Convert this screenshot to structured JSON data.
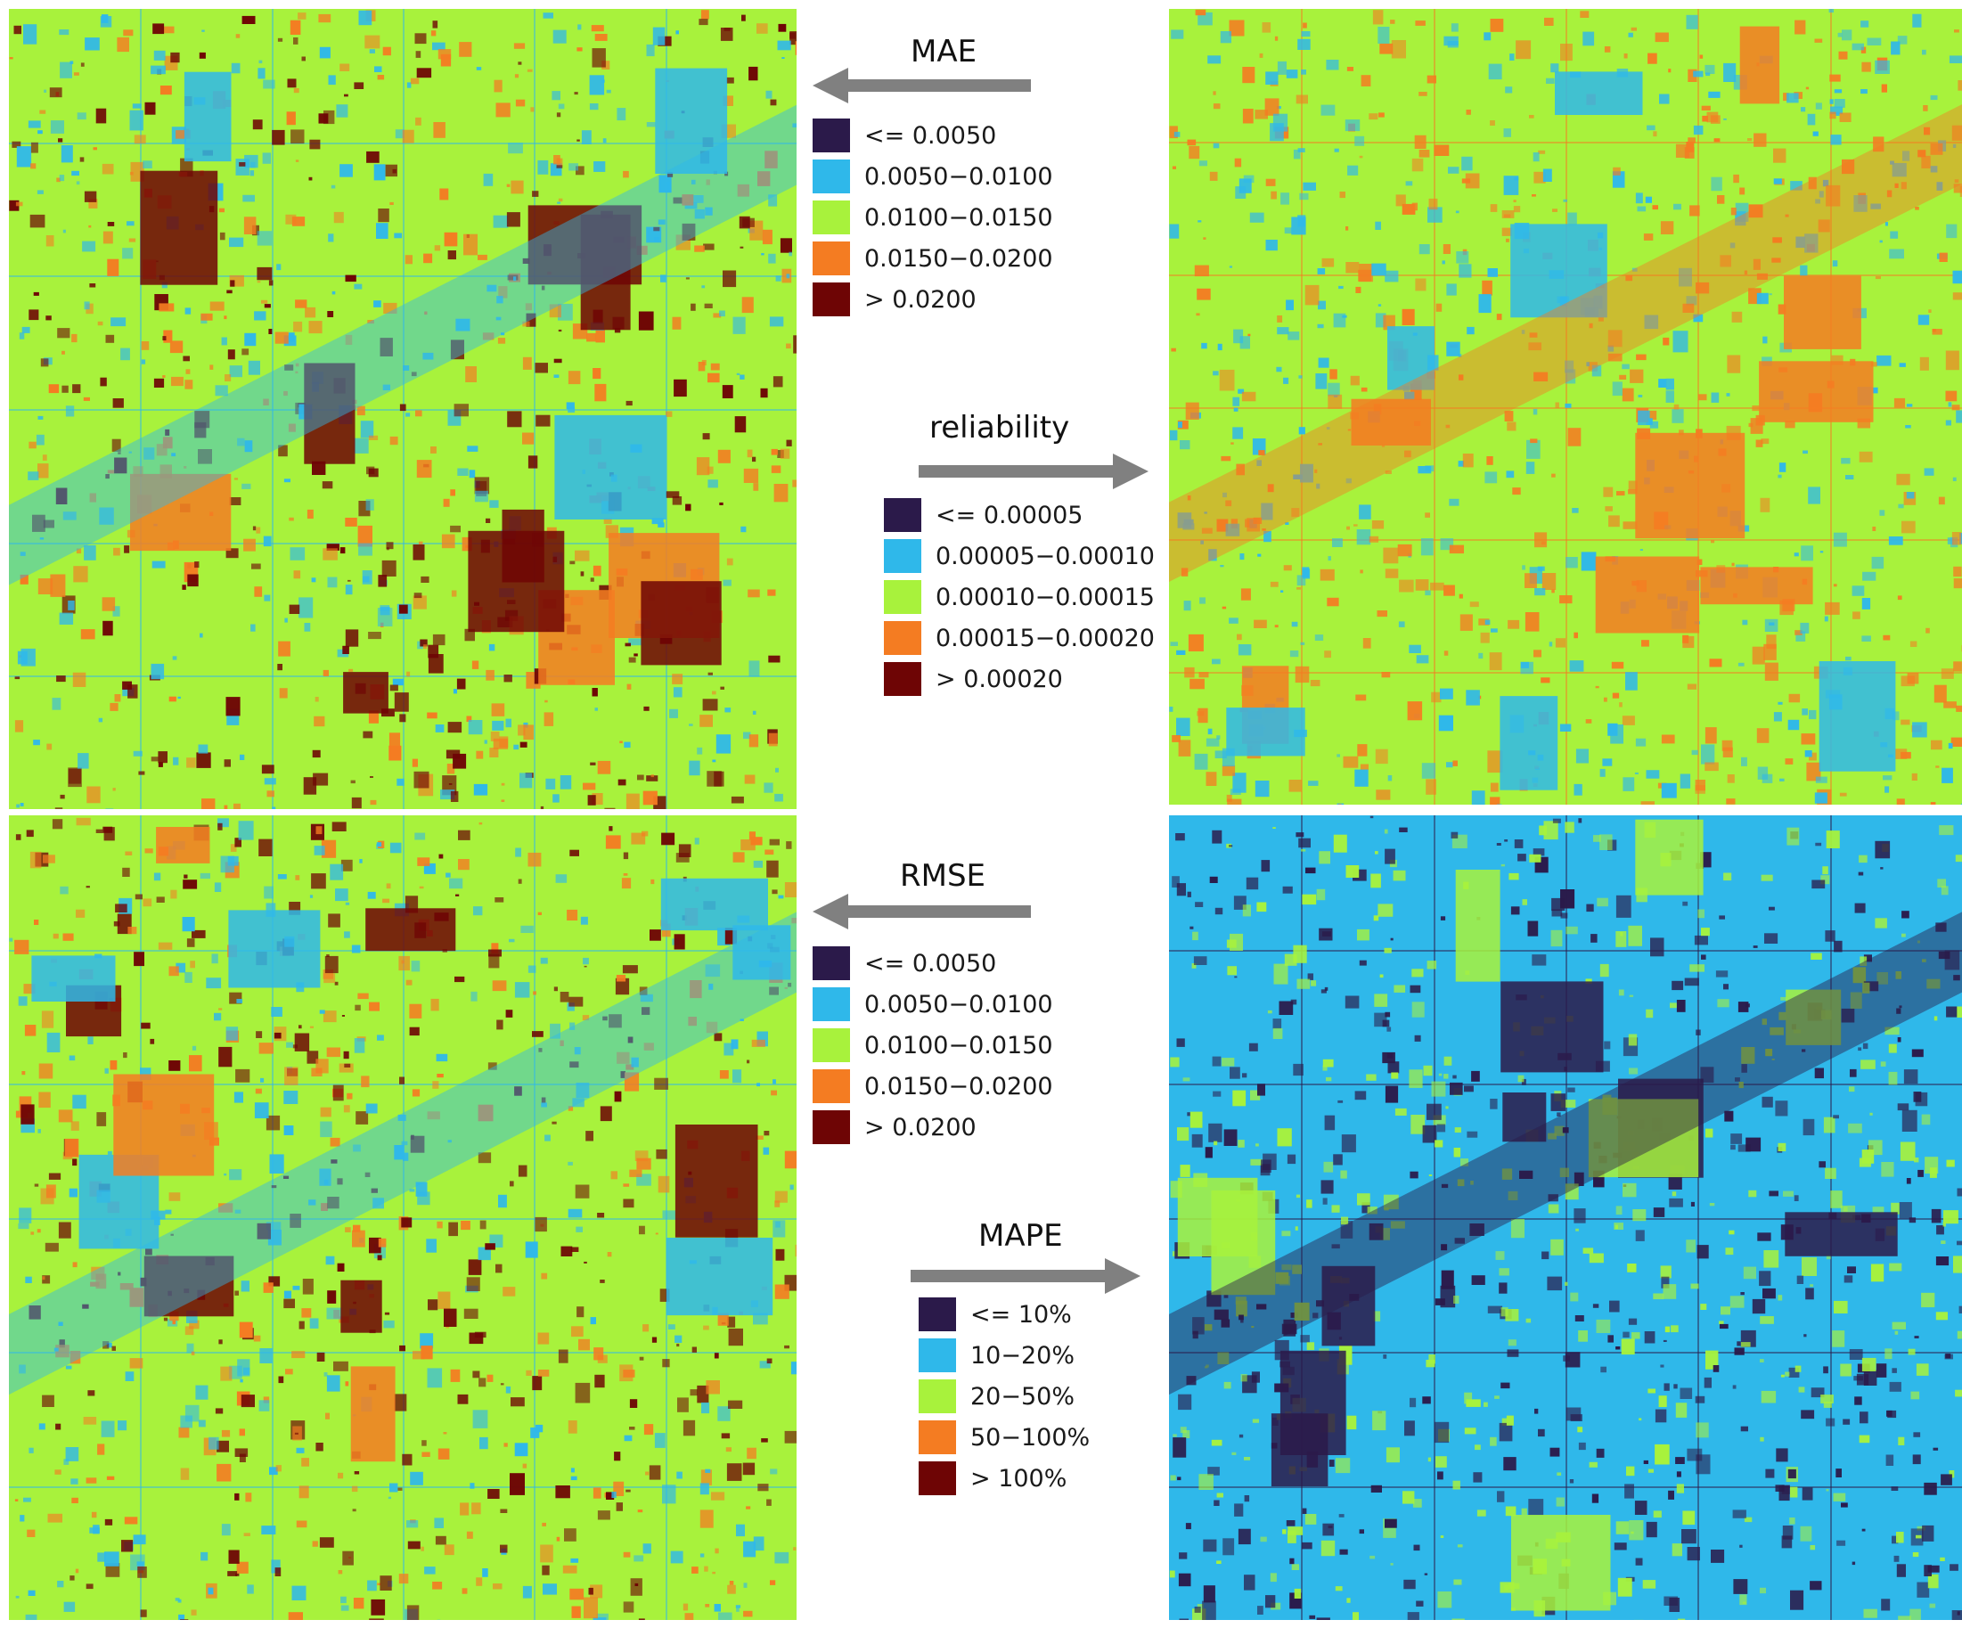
{
  "colors": {
    "c1": "#2b1a4a",
    "c2": "#2fb8ea",
    "c3": "#a8f23c",
    "c4": "#f47c22",
    "c5": "#6e0505",
    "arrow": "#808080"
  },
  "maps": [
    {
      "name": "mae",
      "base": "#a8f23c",
      "texture": [
        "#2fb8ea",
        "#f47c22",
        "#6e0505"
      ]
    },
    {
      "name": "reliability",
      "base": "#a8f23c",
      "texture": [
        "#f47c22",
        "#2fb8ea"
      ]
    },
    {
      "name": "rmse",
      "base": "#a8f23c",
      "texture": [
        "#2fb8ea",
        "#f47c22",
        "#6e0505"
      ]
    },
    {
      "name": "mape",
      "base": "#2fb8ea",
      "texture": [
        "#2b1a4a",
        "#a8f23c"
      ]
    }
  ],
  "legends": {
    "mae": {
      "title": "MAE",
      "items": [
        "<= 0.0050",
        "0.0050−0.0100",
        "0.0100−0.0150",
        "0.0150−0.0200",
        "> 0.0200"
      ]
    },
    "reliability": {
      "title": "reliability",
      "items": [
        "<= 0.00005",
        "0.00005−0.00010",
        "0.00010−0.00015",
        "0.00015−0.00020",
        "> 0.00020"
      ]
    },
    "rmse": {
      "title": "RMSE",
      "items": [
        "<= 0.0050",
        "0.0050−0.0100",
        "0.0100−0.0150",
        "0.0150−0.0200",
        "> 0.0200"
      ]
    },
    "mape": {
      "title": "MAPE",
      "items": [
        "<= 10%",
        "10−20%",
        "20−50%",
        "50−100%",
        "> 100%"
      ]
    }
  }
}
